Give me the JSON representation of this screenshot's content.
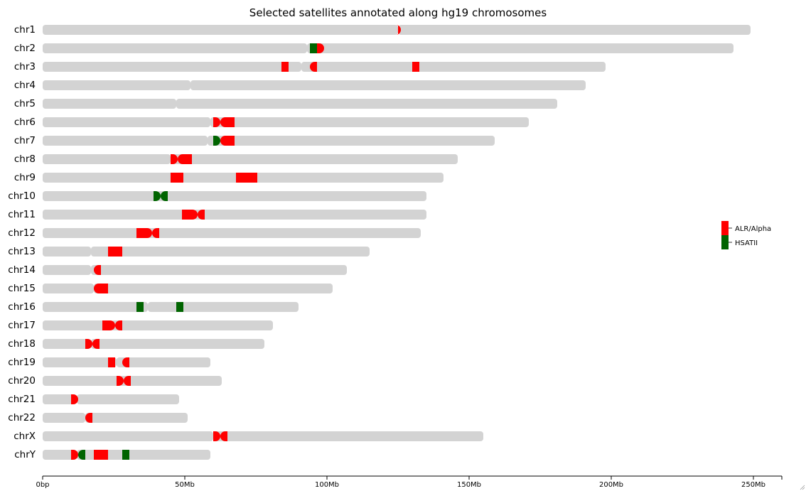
{
  "chart_data": {
    "type": "ideogram",
    "title": "Selected satellites annotated along hg19 chromosomes",
    "xlabel": "",
    "ylabel": "",
    "xlim_mb": [
      0,
      260
    ],
    "x_ticks": [
      {
        "value": 0,
        "label": "0bp"
      },
      {
        "value": 50,
        "label": "50Mb"
      },
      {
        "value": 100,
        "label": "100Mb"
      },
      {
        "value": 150,
        "label": "150Mb"
      },
      {
        "value": 200,
        "label": "200Mb"
      },
      {
        "value": 250,
        "label": "250Mb"
      }
    ],
    "legend_position": "right",
    "series": [
      {
        "name": "ALR/Alpha",
        "color": "#ff0000"
      },
      {
        "name": "HSATII",
        "color": "#006400"
      }
    ],
    "chromosome_color": "#d3d3d3",
    "chromosomes": [
      {
        "name": "chr1",
        "length": 249,
        "centromere": 125,
        "features": [
          {
            "series": 0,
            "start": 125,
            "end": 126,
            "shape": "cen-right"
          }
        ]
      },
      {
        "name": "chr2",
        "length": 243,
        "centromere": 93,
        "features": [
          {
            "series": 1,
            "start": 94,
            "end": 96.5,
            "shape": "rect"
          },
          {
            "series": 0,
            "start": 96.5,
            "end": 99,
            "shape": "cen-right"
          }
        ]
      },
      {
        "name": "chr3",
        "length": 198,
        "centromere": 91,
        "features": [
          {
            "series": 0,
            "start": 84,
            "end": 86.5,
            "shape": "rect"
          },
          {
            "series": 0,
            "start": 94,
            "end": 96.5,
            "shape": "cen-left"
          },
          {
            "series": 0,
            "start": 130,
            "end": 132.5,
            "shape": "rect"
          }
        ]
      },
      {
        "name": "chr4",
        "length": 191,
        "centromere": 52,
        "features": []
      },
      {
        "name": "chr5",
        "length": 181,
        "centromere": 47,
        "features": []
      },
      {
        "name": "chr6",
        "length": 171,
        "centromere": 59,
        "features": [
          {
            "series": 0,
            "start": 60,
            "end": 62.5,
            "shape": "cen-right"
          },
          {
            "series": 0,
            "start": 62.5,
            "end": 67.5,
            "shape": "cen-left"
          }
        ]
      },
      {
        "name": "chr7",
        "length": 159,
        "centromere": 58,
        "features": [
          {
            "series": 1,
            "start": 60,
            "end": 62.5,
            "shape": "cen-right"
          },
          {
            "series": 0,
            "start": 62.5,
            "end": 67.5,
            "shape": "cen-left"
          }
        ]
      },
      {
        "name": "chr8",
        "length": 146,
        "centromere": 45,
        "features": [
          {
            "series": 0,
            "start": 45,
            "end": 47.5,
            "shape": "cen-right"
          },
          {
            "series": 0,
            "start": 47.5,
            "end": 52.5,
            "shape": "cen-left"
          }
        ]
      },
      {
        "name": "chr9",
        "length": 141,
        "centromere": 49,
        "features": [
          {
            "series": 0,
            "start": 45,
            "end": 49.5,
            "shape": "rect"
          },
          {
            "series": 0,
            "start": 68,
            "end": 75.5,
            "shape": "rect"
          }
        ]
      },
      {
        "name": "chr10",
        "length": 135,
        "centromere": 40,
        "features": [
          {
            "series": 1,
            "start": 39,
            "end": 41.5,
            "shape": "cen-right"
          },
          {
            "series": 1,
            "start": 41.5,
            "end": 44,
            "shape": "cen-left"
          }
        ]
      },
      {
        "name": "chr11",
        "length": 135,
        "centromere": 53,
        "features": [
          {
            "series": 0,
            "start": 49,
            "end": 54.5,
            "shape": "cen-right"
          },
          {
            "series": 0,
            "start": 54.5,
            "end": 57,
            "shape": "cen-left"
          }
        ]
      },
      {
        "name": "chr12",
        "length": 133,
        "centromere": 35,
        "features": [
          {
            "series": 0,
            "start": 33,
            "end": 38.5,
            "shape": "cen-right"
          },
          {
            "series": 0,
            "start": 38.5,
            "end": 41,
            "shape": "cen-left"
          }
        ]
      },
      {
        "name": "chr13",
        "length": 115,
        "centromere": 17,
        "features": [
          {
            "series": 0,
            "start": 23,
            "end": 28,
            "shape": "rect"
          }
        ]
      },
      {
        "name": "chr14",
        "length": 107,
        "centromere": 17,
        "features": [
          {
            "series": 0,
            "start": 18,
            "end": 20.5,
            "shape": "cen-left"
          }
        ]
      },
      {
        "name": "chr15",
        "length": 102,
        "centromere": 18,
        "features": [
          {
            "series": 0,
            "start": 18,
            "end": 23,
            "shape": "cen-left"
          }
        ]
      },
      {
        "name": "chr16",
        "length": 90,
        "centromere": 37,
        "features": [
          {
            "series": 1,
            "start": 33,
            "end": 35.5,
            "shape": "rect"
          },
          {
            "series": 1,
            "start": 47,
            "end": 49.5,
            "shape": "rect"
          }
        ]
      },
      {
        "name": "chr17",
        "length": 81,
        "centromere": 24,
        "features": [
          {
            "series": 0,
            "start": 21,
            "end": 25.5,
            "shape": "cen-right"
          },
          {
            "series": 0,
            "start": 25.5,
            "end": 28,
            "shape": "cen-left"
          }
        ]
      },
      {
        "name": "chr18",
        "length": 78,
        "centromere": 17,
        "features": [
          {
            "series": 0,
            "start": 15,
            "end": 17.5,
            "shape": "cen-right"
          },
          {
            "series": 0,
            "start": 17.5,
            "end": 20,
            "shape": "cen-left"
          }
        ]
      },
      {
        "name": "chr19",
        "length": 59,
        "centromere": 26,
        "features": [
          {
            "series": 0,
            "start": 23,
            "end": 25.5,
            "shape": "rect"
          },
          {
            "series": 0,
            "start": 28,
            "end": 30.5,
            "shape": "cen-left"
          }
        ]
      },
      {
        "name": "chr20",
        "length": 63,
        "centromere": 27,
        "features": [
          {
            "series": 0,
            "start": 26,
            "end": 28.5,
            "shape": "cen-right"
          },
          {
            "series": 0,
            "start": 28.5,
            "end": 31,
            "shape": "cen-left"
          }
        ]
      },
      {
        "name": "chr21",
        "length": 48,
        "centromere": 12,
        "features": [
          {
            "series": 0,
            "start": 10,
            "end": 12.5,
            "shape": "cen-right"
          }
        ]
      },
      {
        "name": "chr22",
        "length": 51,
        "centromere": 15,
        "features": [
          {
            "series": 0,
            "start": 15,
            "end": 17.5,
            "shape": "cen-left"
          }
        ]
      },
      {
        "name": "chrX",
        "length": 155,
        "centromere": 60,
        "features": [
          {
            "series": 0,
            "start": 60,
            "end": 62.5,
            "shape": "cen-right"
          },
          {
            "series": 0,
            "start": 62.5,
            "end": 65,
            "shape": "cen-left"
          }
        ]
      },
      {
        "name": "chrY",
        "length": 59,
        "centromere": 12,
        "features": [
          {
            "series": 0,
            "start": 10,
            "end": 12.5,
            "shape": "cen-right"
          },
          {
            "series": 1,
            "start": 12.5,
            "end": 15,
            "shape": "cen-left"
          },
          {
            "series": 0,
            "start": 18,
            "end": 23,
            "shape": "rect"
          },
          {
            "series": 1,
            "start": 28,
            "end": 30.5,
            "shape": "rect"
          }
        ]
      }
    ]
  }
}
